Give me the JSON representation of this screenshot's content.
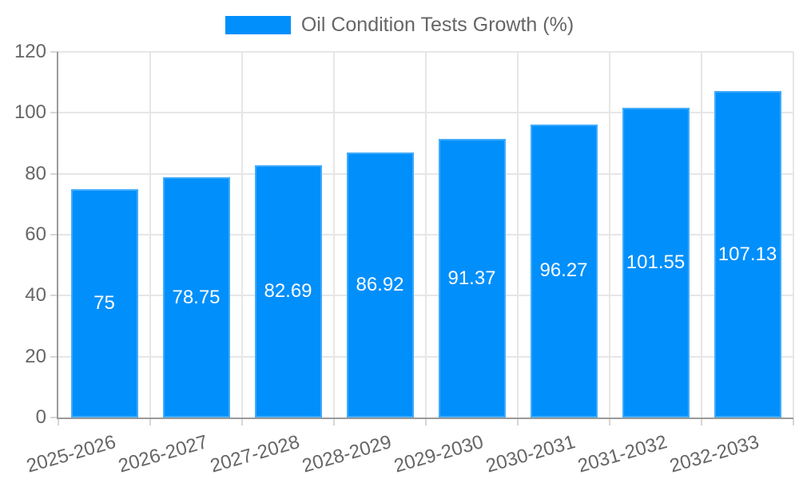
{
  "legend": {
    "label": "Oil Condition Tests Growth (%)"
  },
  "colors": {
    "bar": "#008FFB",
    "bar_edge": "rgba(255,255,255,0.25)",
    "text": "#666666",
    "value_label": "#ffffff",
    "grid": "#e6e6e6",
    "axis": "#9a9a9a",
    "tick": "#d6d6d6",
    "background": "#ffffff"
  },
  "chart_data": {
    "type": "bar",
    "title": "",
    "legend": "Oil Condition Tests Growth (%)",
    "legend_position": "top",
    "categories": [
      "2025-2026",
      "2026-2027",
      "2027-2028",
      "2028-2029",
      "2029-2030",
      "2030-2031",
      "2031-2032",
      "2032-2033"
    ],
    "values": [
      75,
      78.75,
      82.69,
      86.92,
      91.37,
      96.27,
      101.55,
      107.13
    ],
    "value_labels": [
      "75",
      "78.75",
      "82.69",
      "86.92",
      "91.37",
      "96.27",
      "101.55",
      "107.13"
    ],
    "xlabel": "",
    "ylabel": "",
    "ylim": [
      0,
      120
    ],
    "yticks": [
      0,
      20,
      40,
      60,
      80,
      100,
      120
    ],
    "grid": true,
    "x_label_rotation_deg": -16
  }
}
